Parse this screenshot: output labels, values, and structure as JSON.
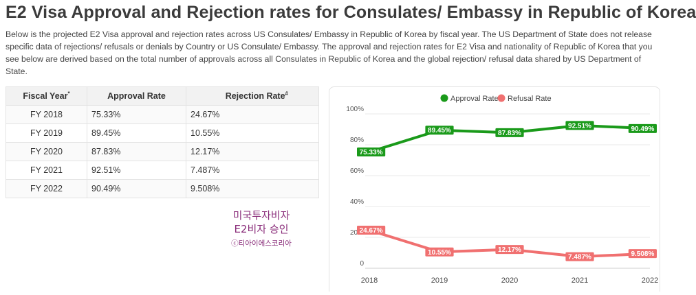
{
  "page": {
    "title": "E2 Visa Approval and Rejection rates for Consulates/ Embassy in Republic of Korea",
    "intro": "Below is the projected E2 Visa approval and rejection rates across US Consulates/ Embassy in Republic of Korea by fiscal year. The US Department of State does not release specific data of rejections/ refusals or denials by Country or US Consulate/ Embassy. The approval and rejection rates for E2 Visa and nationality of Republic of Korea that you see below are derived based on the total number of approvals across all Consulates in Republic of Korea and the global rejection/ refusal data shared by US Department of State."
  },
  "table": {
    "headers": [
      {
        "label": "Fiscal Year",
        "mark": "*"
      },
      {
        "label": "Approval Rate",
        "mark": ""
      },
      {
        "label": "Rejection Rate",
        "mark": "#"
      }
    ],
    "rows": [
      [
        "FY 2018",
        "75.33%",
        "24.67%"
      ],
      [
        "FY 2019",
        "89.45%",
        "10.55%"
      ],
      [
        "FY 2020",
        "87.83%",
        "12.17%"
      ],
      [
        "FY 2021",
        "92.51%",
        "7.487%"
      ],
      [
        "FY 2022",
        "90.49%",
        "9.508%"
      ]
    ]
  },
  "watermark": {
    "line1": "미국투자비자",
    "line2": "E2비자 승인",
    "line3": "ⓒ티아이에스코리아"
  },
  "colors": {
    "approval": "#1a9a1a",
    "refusal": "#f07070",
    "watermark": "#8a2d7a"
  },
  "chart_data": {
    "type": "line",
    "categories": [
      "2018",
      "2019",
      "2020",
      "2021",
      "2022"
    ],
    "series": [
      {
        "name": "Approval Rate",
        "values": [
          75.33,
          89.45,
          87.83,
          92.51,
          90.49
        ],
        "labels": [
          "75.33%",
          "89.45%",
          "87.83%",
          "92.51%",
          "90.49%"
        ],
        "color": "#1a9a1a"
      },
      {
        "name": "Refusal Rate",
        "values": [
          24.67,
          10.55,
          12.17,
          7.487,
          9.508
        ],
        "labels": [
          "24.67%",
          "10.55%",
          "12.17%",
          "7.487%",
          "9.508%"
        ],
        "color": "#f07070"
      }
    ],
    "y_ticks": [
      {
        "value": 0,
        "label": "0"
      },
      {
        "value": 20,
        "label": "20%"
      },
      {
        "value": 40,
        "label": "40%"
      },
      {
        "value": 60,
        "label": "60%"
      },
      {
        "value": 80,
        "label": "80%"
      },
      {
        "value": 100,
        "label": "100%"
      }
    ],
    "ylim": [
      0,
      100
    ],
    "grid": true,
    "legend_position": "top-center"
  }
}
